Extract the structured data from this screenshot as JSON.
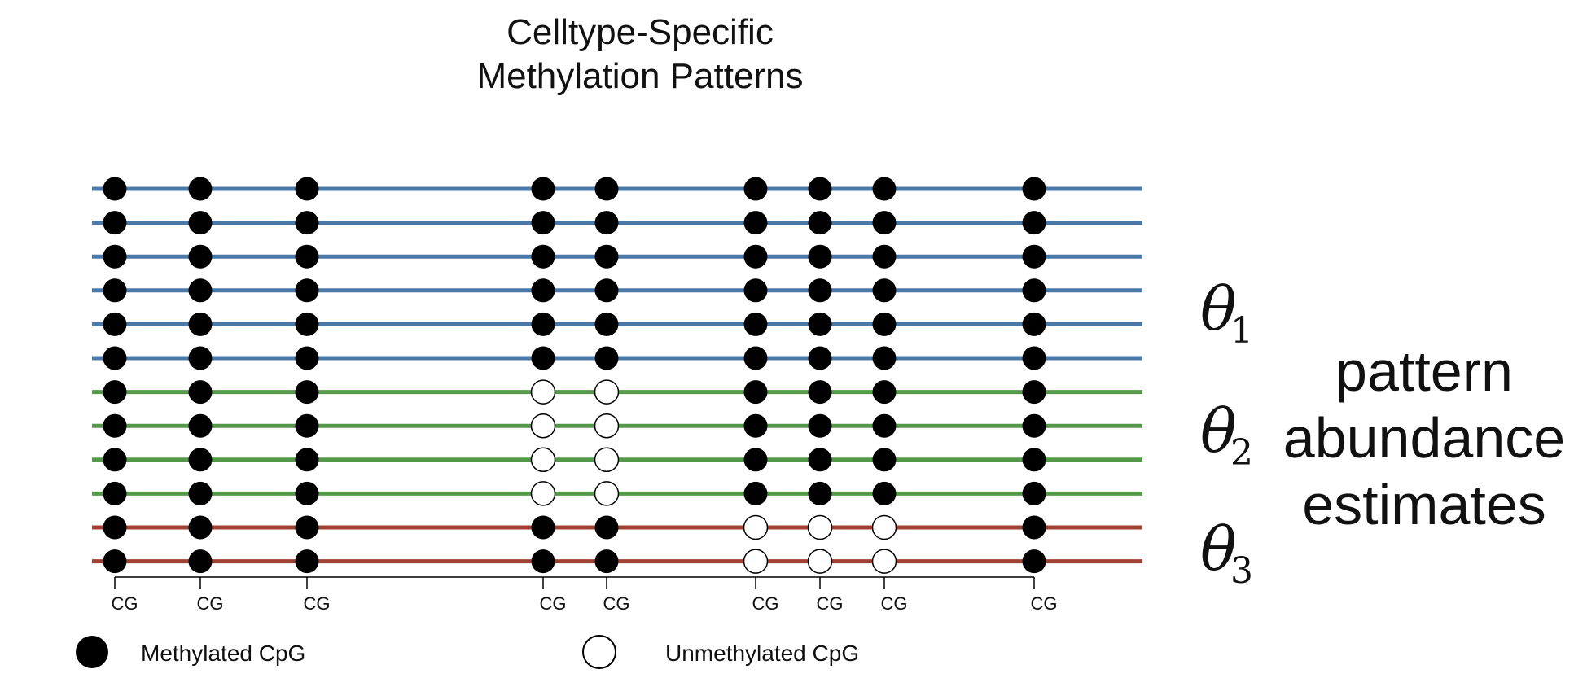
{
  "title": {
    "line1": "Celltype-Specific",
    "line2": "Methylation Patterns"
  },
  "colors": {
    "blue": "#4a79a8",
    "green": "#54984a",
    "red": "#a04232",
    "methylated": "#000000",
    "unmethylated": "#ffffff"
  },
  "cpg_label": "CG",
  "cpg_count": 9,
  "reads": [
    {
      "group": 1,
      "color": "blue",
      "states": [
        1,
        1,
        1,
        1,
        1,
        1,
        1,
        1,
        1
      ]
    },
    {
      "group": 1,
      "color": "blue",
      "states": [
        1,
        1,
        1,
        1,
        1,
        1,
        1,
        1,
        1
      ]
    },
    {
      "group": 1,
      "color": "blue",
      "states": [
        1,
        1,
        1,
        1,
        1,
        1,
        1,
        1,
        1
      ]
    },
    {
      "group": 1,
      "color": "blue",
      "states": [
        1,
        1,
        1,
        1,
        1,
        1,
        1,
        1,
        1
      ]
    },
    {
      "group": 1,
      "color": "blue",
      "states": [
        1,
        1,
        1,
        1,
        1,
        1,
        1,
        1,
        1
      ]
    },
    {
      "group": 1,
      "color": "blue",
      "states": [
        1,
        1,
        1,
        1,
        1,
        1,
        1,
        1,
        1
      ]
    },
    {
      "group": 2,
      "color": "green",
      "states": [
        1,
        1,
        1,
        0,
        0,
        1,
        1,
        1,
        1
      ]
    },
    {
      "group": 2,
      "color": "green",
      "states": [
        1,
        1,
        1,
        0,
        0,
        1,
        1,
        1,
        1
      ]
    },
    {
      "group": 2,
      "color": "green",
      "states": [
        1,
        1,
        1,
        0,
        0,
        1,
        1,
        1,
        1
      ]
    },
    {
      "group": 2,
      "color": "green",
      "states": [
        1,
        1,
        1,
        0,
        0,
        1,
        1,
        1,
        1
      ]
    },
    {
      "group": 3,
      "color": "red",
      "states": [
        1,
        1,
        1,
        1,
        1,
        0,
        0,
        0,
        1
      ]
    },
    {
      "group": 3,
      "color": "red",
      "states": [
        1,
        1,
        1,
        1,
        1,
        0,
        0,
        0,
        1
      ]
    }
  ],
  "thetas": [
    {
      "symbol": "θ",
      "subscript": "1"
    },
    {
      "symbol": "θ",
      "subscript": "2"
    },
    {
      "symbol": "θ",
      "subscript": "3"
    }
  ],
  "abundance_label": [
    "pattern",
    "abundance",
    "estimates"
  ],
  "legend": {
    "methylated": "Methylated CpG",
    "unmethylated": "Unmethylated CpG"
  }
}
